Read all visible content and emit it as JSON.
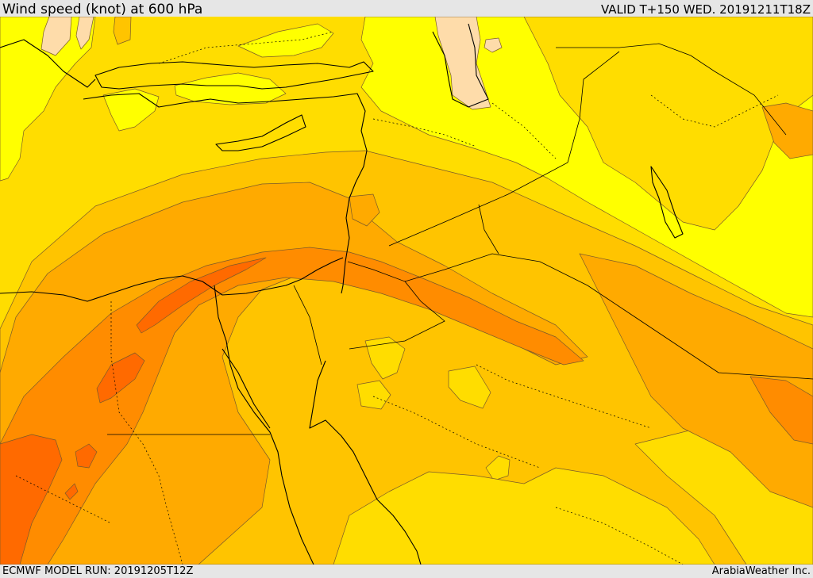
{
  "header": {
    "title": "Wind speed (knot) at 600 hPa",
    "valid_time": "VALID T+150 WED. 20191211T18Z"
  },
  "footer": {
    "model_run": "ECMWF MODEL RUN: 20191205T12Z",
    "credit": "ArabiaWeather Inc."
  },
  "map": {
    "variable": "wind speed",
    "units": "knot",
    "level_hPa": 600,
    "legend": "none",
    "colors": {
      "light_yellow": "#ffff00",
      "gold": "#ffdd00",
      "yellow_orange": "#ffc400",
      "amber": "#ffaa00",
      "orange": "#ff8c00",
      "dark_orange": "#ff6a00",
      "peach": "#fedcaa",
      "border": "#000000",
      "contour": "#7a5a2a"
    }
  }
}
